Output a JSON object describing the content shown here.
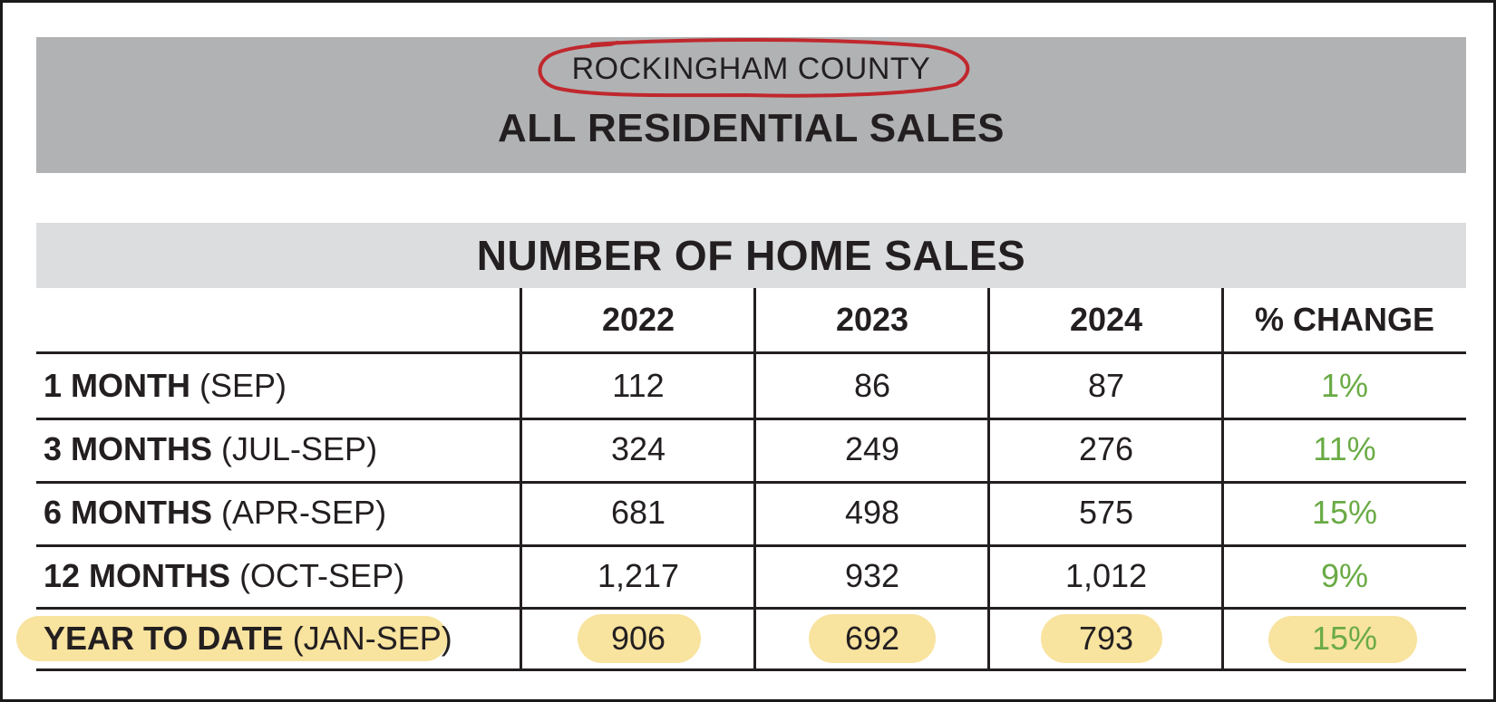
{
  "header": {
    "county": "ROCKINGHAM COUNTY",
    "title": "ALL RESIDENTIAL SALES"
  },
  "section": {
    "title": "NUMBER OF HOME SALES"
  },
  "table": {
    "columns": [
      "2022",
      "2023",
      "2024",
      "% CHANGE"
    ],
    "rows": [
      {
        "period": "1 MONTH",
        "range": "(SEP)",
        "values": [
          "112",
          "86",
          "87"
        ],
        "change": "1%"
      },
      {
        "period": "3 MONTHS",
        "range": "(JUL-SEP)",
        "values": [
          "324",
          "249",
          "276"
        ],
        "change": "11%"
      },
      {
        "period": "6 MONTHS",
        "range": "(APR-SEP)",
        "values": [
          "681",
          "498",
          "575"
        ],
        "change": "15%"
      },
      {
        "period": "12 MONTHS",
        "range": "(OCT-SEP)",
        "values": [
          "1,217",
          "932",
          "1,012"
        ],
        "change": "9%"
      },
      {
        "period": "YEAR TO DATE",
        "range": "(JAN-SEP)",
        "values": [
          "906",
          "692",
          "793"
        ],
        "change": "15%"
      }
    ]
  },
  "colors": {
    "banner": "#b1b2b4",
    "section_bar": "#dcdddf",
    "change_text": "#6aab45",
    "highlight": "#f8e29a",
    "circle": "#c0282d"
  }
}
